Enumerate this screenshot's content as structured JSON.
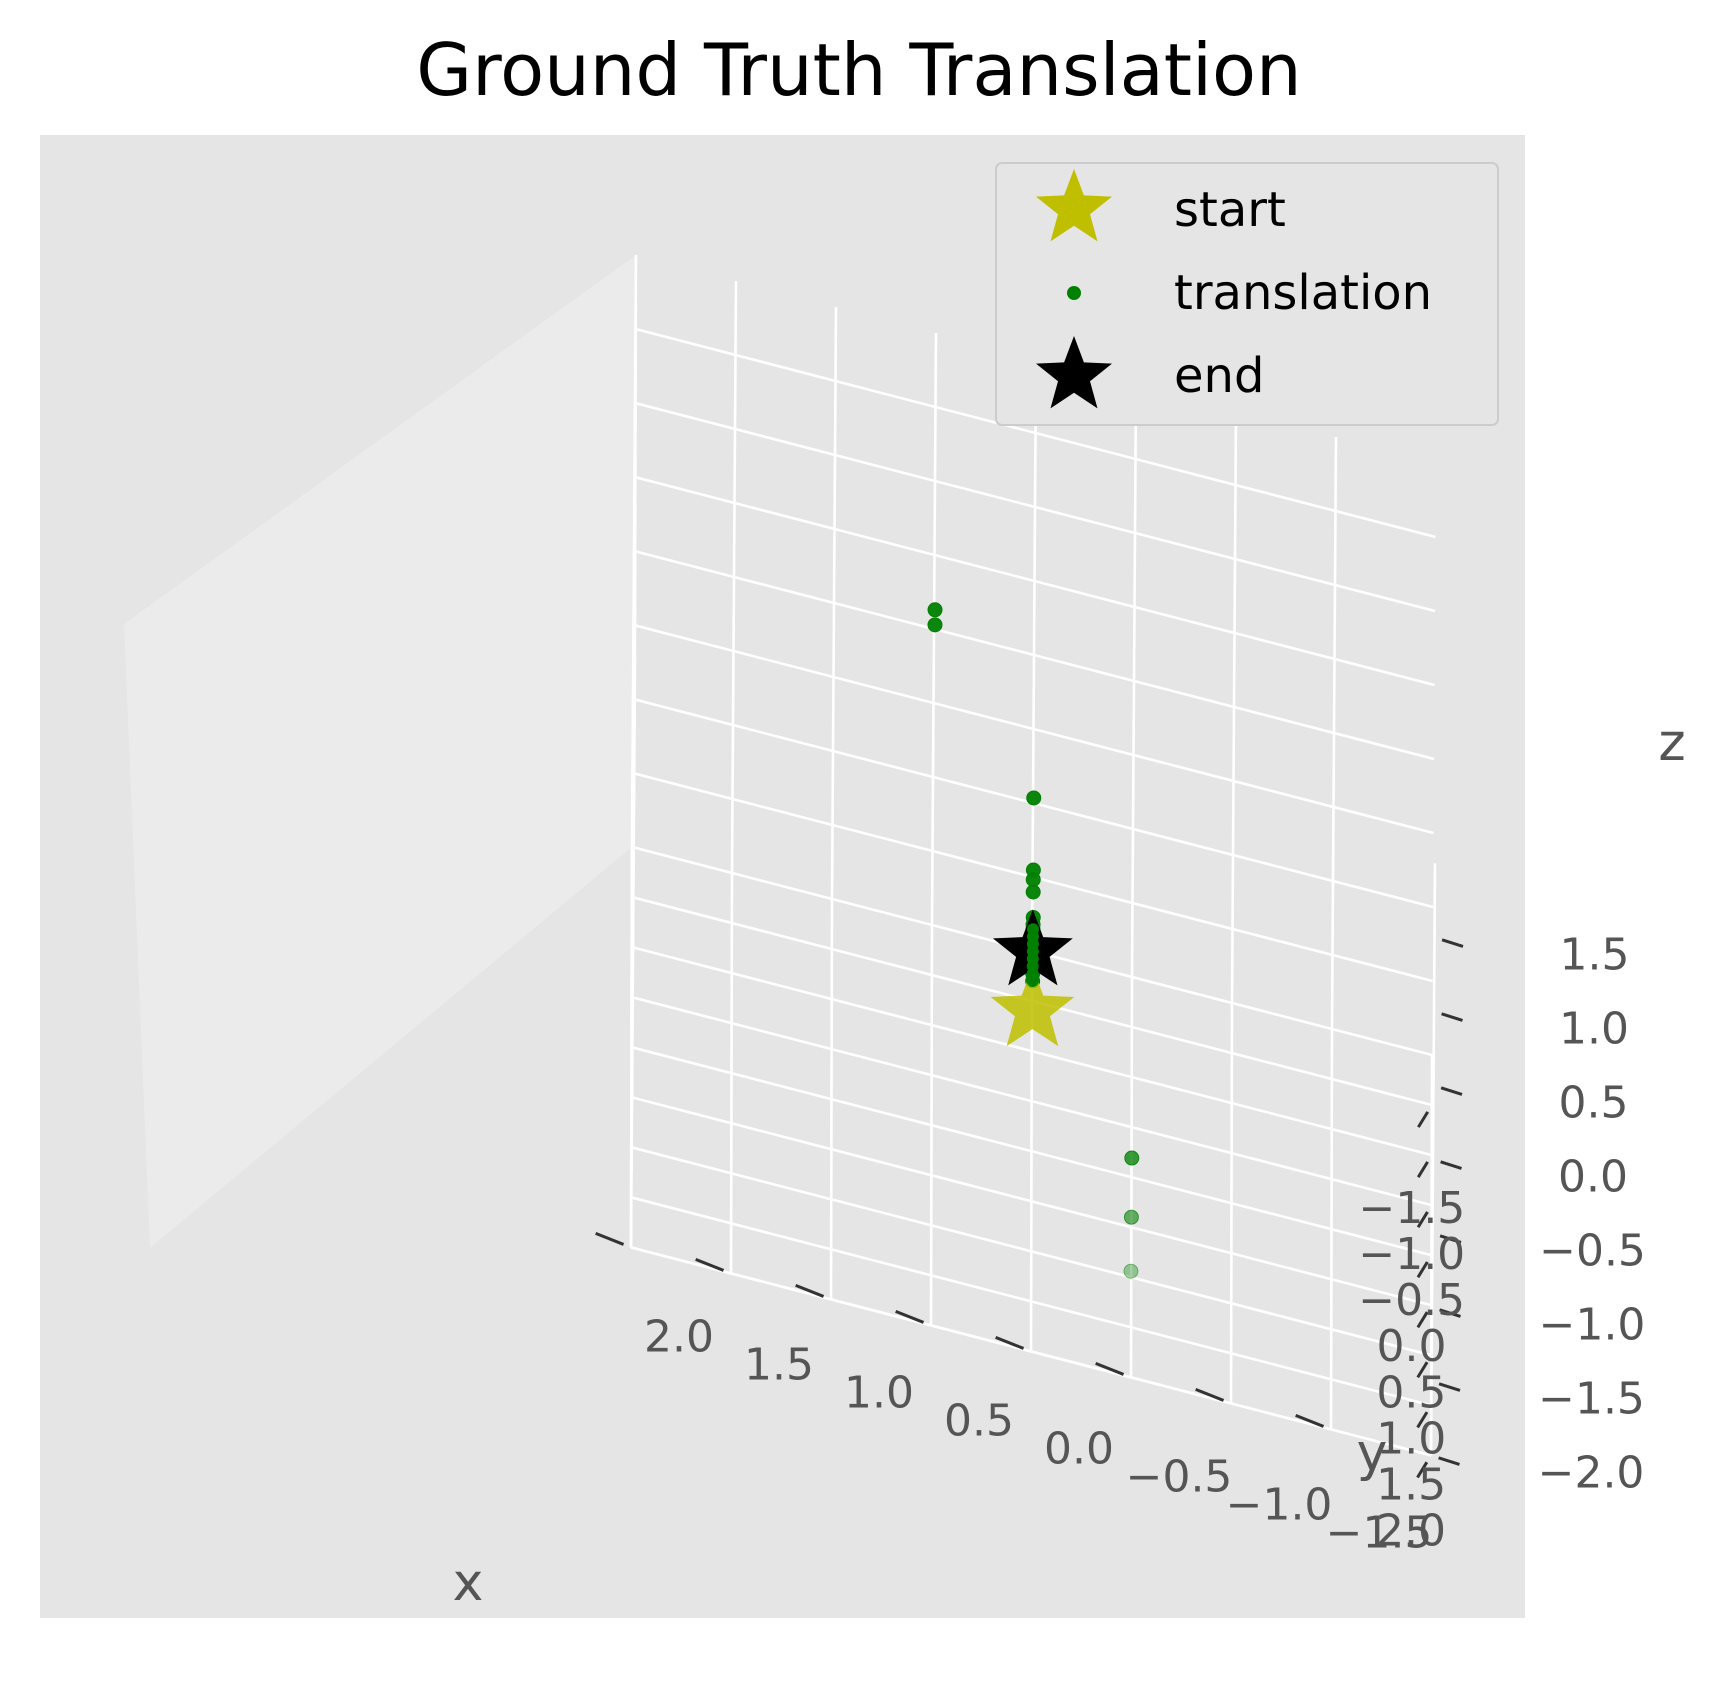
{
  "chart_data": {
    "type": "scatter",
    "projection": "3d",
    "style": "ggplot",
    "title": "Ground Truth Translation",
    "xlabel": "x",
    "ylabel": "y",
    "zlabel": "z",
    "xlim": [
      -2,
      2
    ],
    "ylim": [
      -2,
      2
    ],
    "zlim": [
      -2,
      2
    ],
    "x_ticks": [
      -1.5,
      -1.0,
      -0.5,
      0.0,
      0.5,
      1.0,
      1.5,
      2.0
    ],
    "y_ticks": [
      -1.5,
      -1.0,
      -0.5,
      0.0,
      0.5,
      1.0,
      1.5,
      2.0
    ],
    "z_ticks": [
      -2.0,
      -1.5,
      -1.0,
      -0.5,
      0.0,
      0.5,
      1.0,
      1.5
    ],
    "x_tick_labels": [
      "−1.5",
      "−1.0",
      "−0.5",
      "0.0",
      "0.5",
      "1.0",
      "1.5",
      "2.0"
    ],
    "y_tick_labels": [
      "−1.5",
      "−1.0",
      "−0.5",
      "0.0",
      "0.5",
      "1.0",
      "1.5",
      "2.0"
    ],
    "z_tick_labels": [
      "−2.0",
      "−1.5",
      "−1.0",
      "−0.5",
      "0.0",
      "0.5",
      "1.0",
      "1.5"
    ],
    "grid": true,
    "legend_position": "top-right",
    "series": [
      {
        "name": "start",
        "marker": "star",
        "color": "#bfbf00",
        "points": [
          [
            0.0,
            0.0,
            -1.05
          ]
        ]
      },
      {
        "name": "translation",
        "marker": "circle",
        "color": "#008000",
        "points": [
          [
            0.0,
            0.0,
            -0.85
          ],
          [
            0.0,
            0.0,
            -0.8
          ],
          [
            0.0,
            0.0,
            -0.75
          ],
          [
            0.0,
            0.0,
            -0.7
          ],
          [
            0.0,
            0.0,
            -0.65
          ],
          [
            0.0,
            0.0,
            -0.6
          ],
          [
            0.0,
            0.0,
            -0.55
          ],
          [
            0.0,
            0.0,
            -0.5
          ],
          [
            0.1,
            0.0,
            -0.4
          ],
          [
            -0.15,
            0.0,
            -0.35
          ],
          [
            -0.2,
            0.0,
            -0.3
          ],
          [
            0.0,
            0.0,
            -0.1
          ],
          [
            0.4,
            0.0,
            -0.15
          ],
          [
            -0.35,
            0.0,
            0.15
          ],
          [
            0.1,
            0.5,
            1.55
          ],
          [
            0.25,
            0.5,
            1.55
          ],
          [
            0.4,
            -0.5,
            -1.6
          ],
          [
            0.4,
            -0.5,
            -2.0
          ],
          [
            0.2,
            -0.5,
            -2.5
          ]
        ]
      },
      {
        "name": "end",
        "marker": "star",
        "color": "#000000",
        "points": [
          [
            0.0,
            0.0,
            -0.65
          ]
        ]
      }
    ]
  }
}
